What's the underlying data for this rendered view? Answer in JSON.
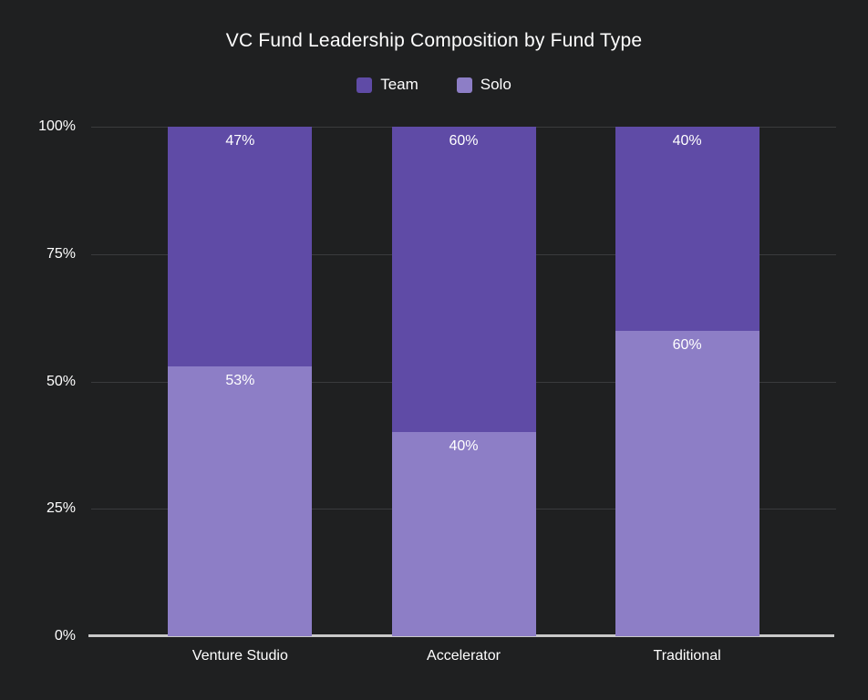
{
  "title": "VC Fund Leadership Composition by Fund Type",
  "colors": {
    "background": "#1f2021",
    "text": "#ffffff",
    "grid": "#3a3b3d",
    "axis": "#c9c9c9",
    "team": "#5f4ba6",
    "solo": "#8d7ec6"
  },
  "legend": {
    "items": [
      {
        "label": "Team",
        "color": "#5f4ba6"
      },
      {
        "label": "Solo",
        "color": "#8d7ec6"
      }
    ]
  },
  "chart_data": {
    "type": "bar",
    "stacked": true,
    "title": "VC Fund Leadership Composition by Fund Type",
    "categories": [
      "Venture Studio",
      "Accelerator",
      "Traditional"
    ],
    "series": [
      {
        "name": "Team",
        "color": "#5f4ba6",
        "values": [
          47,
          60,
          40
        ],
        "labels": [
          "47%",
          "60%",
          "40%"
        ]
      },
      {
        "name": "Solo",
        "color": "#8d7ec6",
        "values": [
          53,
          40,
          60
        ],
        "labels": [
          "53%",
          "40%",
          "60%"
        ]
      }
    ],
    "xlabel": "",
    "ylabel": "",
    "ylim": [
      0,
      100
    ],
    "yticks": [
      {
        "label": "0%",
        "value": 0
      },
      {
        "label": "25%",
        "value": 25
      },
      {
        "label": "50%",
        "value": 50
      },
      {
        "label": "75%",
        "value": 75
      },
      {
        "label": "100%",
        "value": 100
      }
    ],
    "grid": true,
    "legend_position": "top",
    "bar_centers_pct": [
      20,
      50,
      80
    ]
  }
}
